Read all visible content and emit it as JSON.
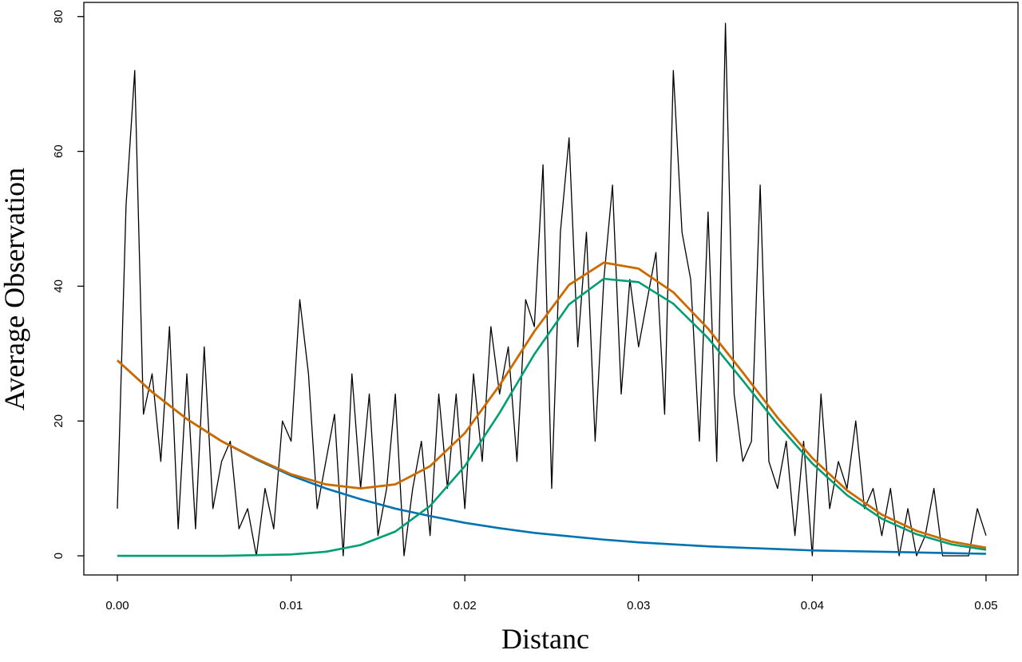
{
  "chart_data": {
    "type": "line",
    "x_label": "Distanc",
    "y_label": "Average Observation",
    "xlim": [
      -0.00193,
      0.05184
    ],
    "ylim": [
      -2.84,
      82.1
    ],
    "xticks": [
      {
        "value": 0,
        "label": "0.00"
      },
      {
        "value": 0.01,
        "label": "0.01"
      },
      {
        "value": 0.02,
        "label": "0.02"
      },
      {
        "value": 0.03,
        "label": "0.03"
      },
      {
        "value": 0.04,
        "label": "0.04"
      },
      {
        "value": 0.05,
        "label": "0.05"
      }
    ],
    "yticks": [
      0,
      20,
      40,
      60,
      80
    ],
    "series": [
      {
        "color": "#000000",
        "width": 1.3,
        "x": [
          0,
          0.0005,
          0.001,
          0.0015,
          0.002,
          0.0025,
          0.003,
          0.0035,
          0.004,
          0.0045,
          0.005,
          0.0055,
          0.006,
          0.0065,
          0.007,
          0.0075,
          0.008,
          0.0085,
          0.009,
          0.0095,
          0.01,
          0.0105,
          0.011,
          0.0115,
          0.012,
          0.0125,
          0.013,
          0.0135,
          0.014,
          0.0145,
          0.015,
          0.0155,
          0.016,
          0.0165,
          0.017,
          0.0175,
          0.018,
          0.0185,
          0.019,
          0.0195,
          0.02,
          0.0205,
          0.021,
          0.0215,
          0.022,
          0.0225,
          0.023,
          0.0235,
          0.024,
          0.0245,
          0.025,
          0.0255,
          0.026,
          0.0265,
          0.027,
          0.0275,
          0.028,
          0.0285,
          0.029,
          0.0295,
          0.03,
          0.0305,
          0.031,
          0.0315,
          0.032,
          0.0325,
          0.033,
          0.0335,
          0.034,
          0.0345,
          0.035,
          0.0355,
          0.036,
          0.0365,
          0.037,
          0.0375,
          0.038,
          0.0385,
          0.039,
          0.0395,
          0.04,
          0.0405,
          0.041,
          0.0415,
          0.042,
          0.0425,
          0.043,
          0.0435,
          0.044,
          0.0445,
          0.045,
          0.0455,
          0.046,
          0.0465,
          0.047,
          0.0475,
          0.048,
          0.0485,
          0.049,
          0.0495,
          0.05
        ],
        "values": [
          7,
          52,
          72,
          21,
          27,
          14,
          34,
          4,
          27,
          4,
          31,
          7,
          14,
          17,
          4,
          7,
          0,
          10,
          4,
          20,
          17,
          38,
          27,
          7,
          14,
          21,
          0,
          27,
          10,
          24,
          3,
          10,
          24,
          0,
          10,
          17,
          3,
          24,
          10,
          24,
          7,
          27,
          14,
          34,
          24,
          31,
          14,
          38,
          34,
          58,
          10,
          48,
          62,
          31,
          48,
          17,
          41,
          55,
          24,
          41,
          31,
          38,
          45,
          21,
          72,
          48,
          41,
          17,
          51,
          14,
          79,
          24,
          14,
          17,
          55,
          14,
          10,
          17,
          3,
          17,
          0,
          24,
          7,
          14,
          10,
          20,
          7,
          10,
          3,
          10,
          0,
          7,
          0,
          3,
          10,
          0,
          0,
          0,
          0,
          7,
          3
        ]
      },
      {
        "color": "#0072b2",
        "width": 2.6,
        "x": [
          0,
          0.002,
          0.004,
          0.006,
          0.008,
          0.01,
          0.012,
          0.014,
          0.016,
          0.018,
          0.02,
          0.022,
          0.024,
          0.026,
          0.028,
          0.03,
          0.032,
          0.034,
          0.036,
          0.038,
          0.04,
          0.042,
          0.044,
          0.046,
          0.048,
          0.05
        ],
        "values": [
          29,
          24.3,
          20.3,
          17.0,
          14.3,
          11.9,
          10.0,
          8.4,
          7.0,
          5.9,
          4.9,
          4.1,
          3.4,
          2.9,
          2.4,
          2.0,
          1.7,
          1.4,
          1.2,
          1.0,
          0.8,
          0.7,
          0.6,
          0.5,
          0.4,
          0.3
        ]
      },
      {
        "color": "#009e73",
        "width": 2.6,
        "x": [
          0,
          0.002,
          0.004,
          0.006,
          0.008,
          0.01,
          0.012,
          0.014,
          0.016,
          0.018,
          0.02,
          0.022,
          0.024,
          0.026,
          0.028,
          0.03,
          0.032,
          0.034,
          0.036,
          0.038,
          0.04,
          0.042,
          0.044,
          0.046,
          0.048,
          0.05
        ],
        "values": [
          0,
          0,
          0,
          0,
          0.1,
          0.2,
          0.6,
          1.6,
          3.6,
          7.4,
          13.3,
          21.2,
          29.9,
          37.3,
          41.1,
          40.6,
          37.4,
          32.3,
          26.0,
          19.5,
          13.7,
          9.0,
          5.5,
          3.2,
          1.7,
          0.9
        ]
      },
      {
        "color": "#cc6a00",
        "width": 2.8,
        "x": [
          0,
          0.002,
          0.004,
          0.006,
          0.008,
          0.01,
          0.012,
          0.014,
          0.016,
          0.018,
          0.02,
          0.022,
          0.024,
          0.026,
          0.028,
          0.03,
          0.032,
          0.034,
          0.036,
          0.038,
          0.04,
          0.042,
          0.044,
          0.046,
          0.048,
          0.05
        ],
        "values": [
          29,
          24.3,
          20.3,
          17.0,
          14.4,
          12.1,
          10.6,
          10.0,
          10.6,
          13.3,
          18.2,
          25.3,
          33.3,
          40.2,
          43.5,
          42.6,
          39.1,
          33.7,
          27.2,
          20.5,
          14.5,
          9.7,
          6.1,
          3.7,
          2.1,
          1.2
        ]
      }
    ]
  }
}
